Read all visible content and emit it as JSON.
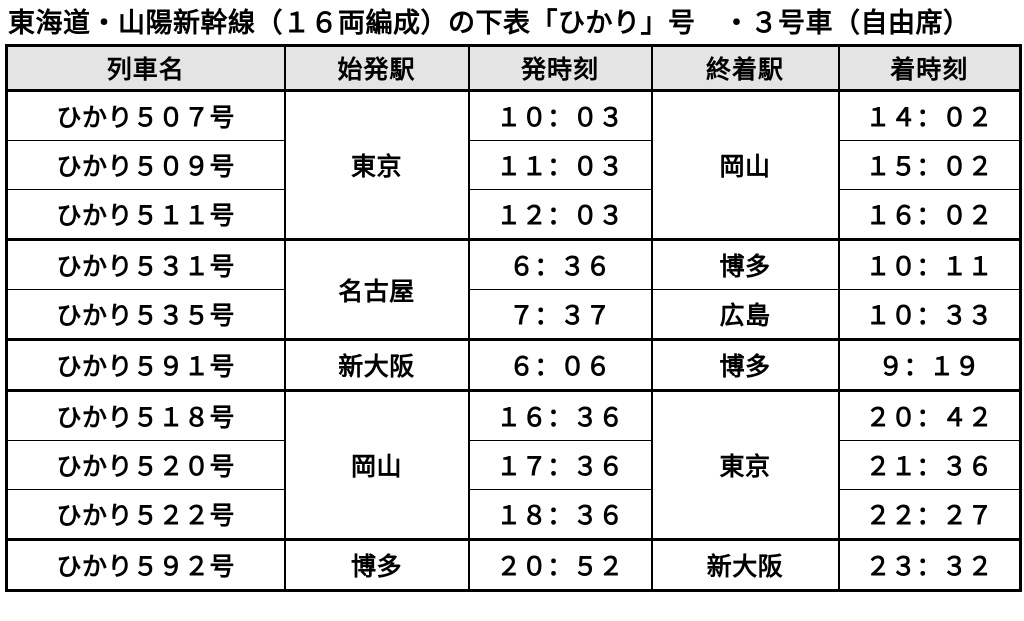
{
  "title": "東海道・山陽新幹線（１６両編成）の下表「ひかり」号　・３号車（自由席）",
  "colors": {
    "header_bg": "#e4e4e4",
    "border": "#000000",
    "text": "#000000",
    "page_bg": "#ffffff"
  },
  "table": {
    "headers": [
      "列車名",
      "始発駅",
      "発時刻",
      "終着駅",
      "着時刻"
    ],
    "rows": [
      {
        "group_start": false,
        "cells": [
          {
            "c": "train",
            "t": "ひかり５０７号"
          },
          {
            "c": "from",
            "t": "東京",
            "rs": 3
          },
          {
            "c": "dep",
            "t": "１０：０３"
          },
          {
            "c": "to",
            "t": "岡山",
            "rs": 3
          },
          {
            "c": "arr",
            "t": "１４：０２"
          }
        ]
      },
      {
        "group_start": false,
        "cells": [
          {
            "c": "train",
            "t": "ひかり５０９号"
          },
          {
            "c": "dep",
            "t": "１１：０３"
          },
          {
            "c": "arr",
            "t": "１５：０２"
          }
        ]
      },
      {
        "group_start": false,
        "cells": [
          {
            "c": "train",
            "t": "ひかり５１１号"
          },
          {
            "c": "dep",
            "t": "１２：０３"
          },
          {
            "c": "arr",
            "t": "１６：０２"
          }
        ]
      },
      {
        "group_start": true,
        "cells": [
          {
            "c": "train",
            "t": "ひかり５３１号"
          },
          {
            "c": "from",
            "t": "名古屋",
            "rs": 2
          },
          {
            "c": "dep",
            "t": "６：３６"
          },
          {
            "c": "to",
            "t": "博多"
          },
          {
            "c": "arr",
            "t": "１０：１１"
          }
        ]
      },
      {
        "group_start": false,
        "cells": [
          {
            "c": "train",
            "t": "ひかり５３５号"
          },
          {
            "c": "dep",
            "t": "７：３７"
          },
          {
            "c": "to",
            "t": "広島"
          },
          {
            "c": "arr",
            "t": "１０：３３"
          }
        ]
      },
      {
        "group_start": true,
        "cells": [
          {
            "c": "train",
            "t": "ひかり５９１号"
          },
          {
            "c": "from",
            "t": "新大阪"
          },
          {
            "c": "dep",
            "t": "６：０６"
          },
          {
            "c": "to",
            "t": "博多"
          },
          {
            "c": "arr",
            "t": "９：１９"
          }
        ]
      },
      {
        "group_start": true,
        "cells": [
          {
            "c": "train",
            "t": "ひかり５１８号"
          },
          {
            "c": "from",
            "t": "岡山",
            "rs": 3
          },
          {
            "c": "dep",
            "t": "１６：３６"
          },
          {
            "c": "to",
            "t": "東京",
            "rs": 3
          },
          {
            "c": "arr",
            "t": "２０：４２"
          }
        ]
      },
      {
        "group_start": false,
        "cells": [
          {
            "c": "train",
            "t": "ひかり５２０号"
          },
          {
            "c": "dep",
            "t": "１７：３６"
          },
          {
            "c": "arr",
            "t": "２１：３６"
          }
        ]
      },
      {
        "group_start": false,
        "cells": [
          {
            "c": "train",
            "t": "ひかり５２２号"
          },
          {
            "c": "dep",
            "t": "１８：３６"
          },
          {
            "c": "arr",
            "t": "２２：２７"
          }
        ]
      },
      {
        "group_start": true,
        "cells": [
          {
            "c": "train",
            "t": "ひかり５９２号"
          },
          {
            "c": "from",
            "t": "博多"
          },
          {
            "c": "dep",
            "t": "２０：５２"
          },
          {
            "c": "to",
            "t": "新大阪"
          },
          {
            "c": "arr",
            "t": "２３：３２"
          }
        ]
      }
    ]
  }
}
